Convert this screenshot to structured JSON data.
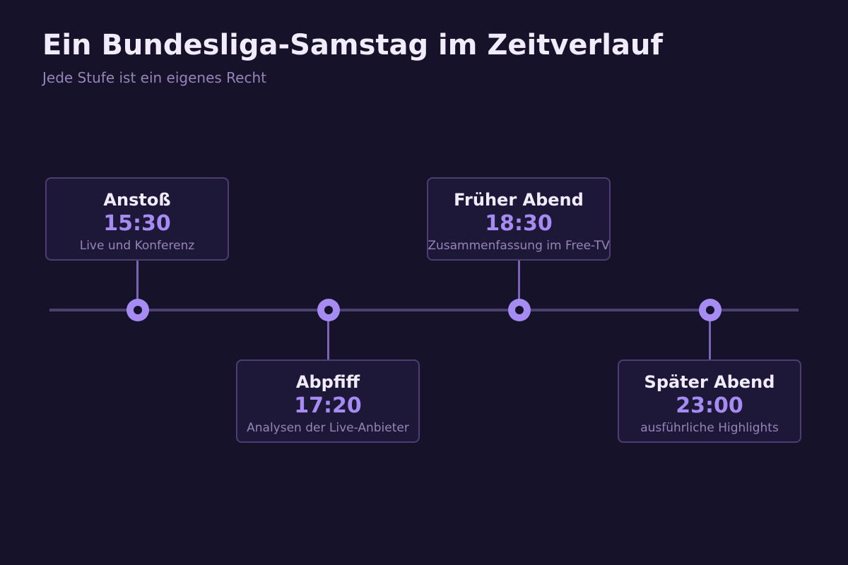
{
  "header": {
    "title": "Ein Bundesliga-Samstag im Zeitverlauf",
    "subtitle": "Jede Stufe ist ein eigenes Recht"
  },
  "colors": {
    "background": "#16122a",
    "accent": "#a68cf2",
    "card_background": "#1e1838",
    "card_border": "#4a3e72",
    "timeline": "#4c416e",
    "text_primary": "#f1ecfb",
    "text_secondary": "#9585b8"
  },
  "timeline": {
    "events": [
      {
        "label": "Anstoß",
        "time": "15:30",
        "description": "Live und Konferenz",
        "side": "above"
      },
      {
        "label": "Abpfiff",
        "time": "17:20",
        "description": "Analysen der Live-Anbieter",
        "side": "below"
      },
      {
        "label": "Früher Abend",
        "time": "18:30",
        "description": "Zusammenfassung im Free-TV",
        "side": "above"
      },
      {
        "label": "Später Abend",
        "time": "23:00",
        "description": "ausführliche Highlights",
        "side": "below"
      }
    ]
  }
}
